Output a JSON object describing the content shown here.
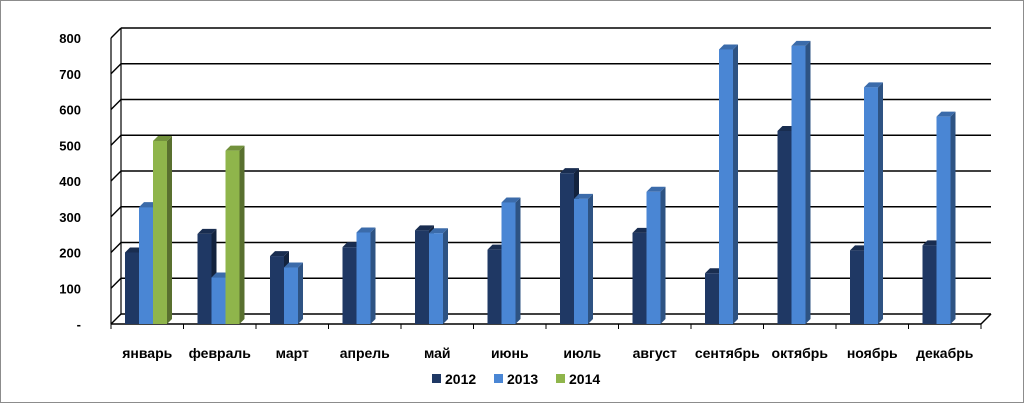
{
  "chart_data": {
    "type": "bar",
    "title": "",
    "xlabel": "",
    "ylabel": "",
    "ylim": [
      0,
      800
    ],
    "yticks": [
      {
        "value": 0,
        "label": "-"
      },
      {
        "value": 100,
        "label": "100"
      },
      {
        "value": 200,
        "label": "200"
      },
      {
        "value": 300,
        "label": "300"
      },
      {
        "value": 400,
        "label": "400"
      },
      {
        "value": 500,
        "label": "500"
      },
      {
        "value": 600,
        "label": "600"
      },
      {
        "value": 700,
        "label": "700"
      },
      {
        "value": 800,
        "label": "800"
      }
    ],
    "grid": true,
    "legend_position": "bottom",
    "categories": [
      "январь",
      "февраль",
      "март",
      "апрель",
      "май",
      "июнь",
      "июль",
      "август",
      "сентябрь",
      "октябрь",
      "ноябрь",
      "декабрь"
    ],
    "series": [
      {
        "name": "2012",
        "color": "#1f3864",
        "values": [
          200,
          252,
          190,
          215,
          262,
          208,
          422,
          255,
          142,
          540,
          206,
          220
        ]
      },
      {
        "name": "2013",
        "color": "#4a86d4",
        "values": [
          327,
          130,
          158,
          256,
          254,
          340,
          350,
          370,
          768,
          778,
          662,
          580
        ]
      },
      {
        "name": "2014",
        "color": "#8fb54b",
        "values": [
          512,
          485,
          null,
          null,
          null,
          null,
          null,
          null,
          null,
          null,
          null,
          null
        ]
      }
    ]
  }
}
